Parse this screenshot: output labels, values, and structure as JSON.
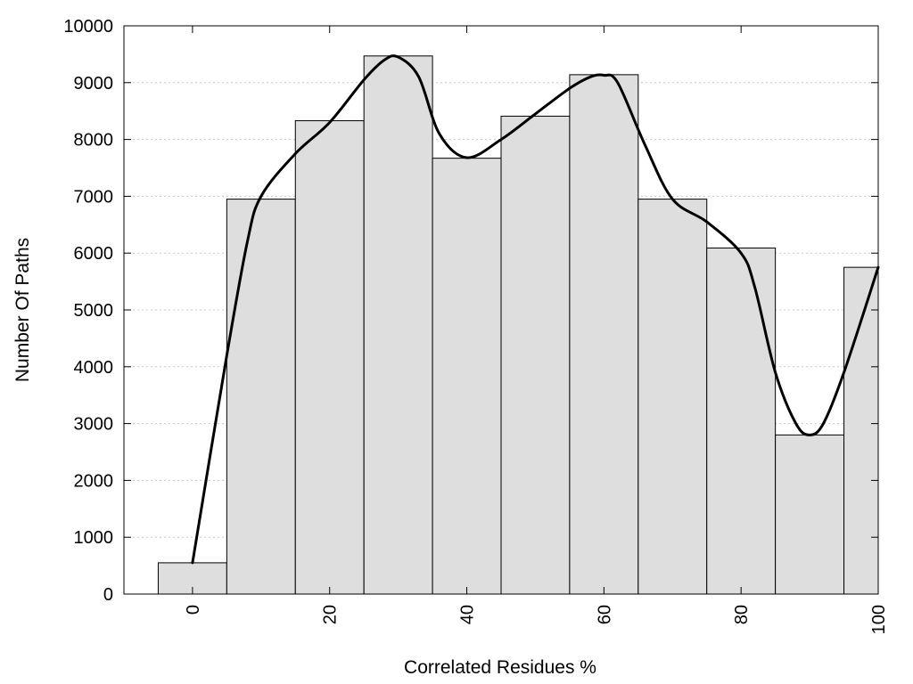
{
  "chart_data": {
    "type": "bar",
    "title": "",
    "xlabel": "Correlated Residues %",
    "ylabel": "Number Of Paths",
    "x": [
      0,
      10,
      20,
      30,
      40,
      50,
      60,
      70,
      80,
      90,
      100
    ],
    "values": [
      550,
      6950,
      8330,
      9470,
      7670,
      8410,
      9140,
      6950,
      6090,
      2800,
      5750
    ],
    "bin_width": 10,
    "xlim": [
      -10,
      100
    ],
    "ylim": [
      0,
      10000
    ],
    "xticks": [
      0,
      20,
      40,
      60,
      80,
      100
    ],
    "yticks": [
      0,
      1000,
      2000,
      3000,
      4000,
      5000,
      6000,
      7000,
      8000,
      9000,
      10000
    ],
    "grid": "horizontal dotted",
    "legend": "none",
    "series": [
      {
        "kind": "smooth-line",
        "x": [
          0,
          5,
          8,
          10,
          15,
          20,
          25,
          28,
          30,
          33,
          36,
          40,
          45,
          50,
          55,
          58,
          60,
          62,
          66,
          70,
          75,
          80,
          82,
          85,
          88,
          90,
          92,
          95,
          100
        ],
        "values": [
          550,
          4200,
          6200,
          7000,
          7750,
          8300,
          9050,
          9400,
          9450,
          9100,
          8100,
          7680,
          8000,
          8450,
          8900,
          9100,
          9130,
          9000,
          7900,
          6950,
          6550,
          6000,
          5400,
          3900,
          3000,
          2800,
          3000,
          3900,
          5750
        ],
        "color": "#000000"
      }
    ],
    "colors": {
      "bar_fill": "#dedede",
      "bar_stroke": "#000000",
      "line": "#000000",
      "grid": "#c8c8c8"
    }
  }
}
